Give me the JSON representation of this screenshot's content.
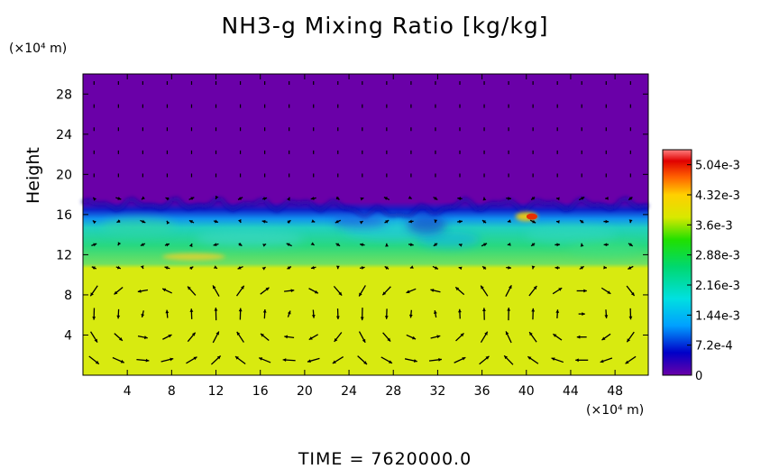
{
  "chart_data": {
    "type": "heatmap",
    "title": "NH3-g Mixing Ratio [kg/kg]",
    "xlabel": "",
    "ylabel": "Height",
    "x_unit": "(×10⁴ m)",
    "y_unit": "(×10⁴ m)",
    "xlim": [
      0,
      51
    ],
    "ylim": [
      0,
      30
    ],
    "x_ticks": [
      4,
      8,
      12,
      16,
      20,
      24,
      28,
      32,
      36,
      40,
      44,
      48
    ],
    "y_ticks": [
      4,
      8,
      12,
      16,
      20,
      24,
      28
    ],
    "colorbar": {
      "min": 0,
      "max": 0.0054,
      "tick_values": [
        0,
        0.00072,
        0.00144,
        0.00216,
        0.00288,
        0.0036,
        0.00432,
        0.00504
      ],
      "tick_labels": [
        "0",
        "7.2e-4",
        "1.44e-3",
        "2.16e-3",
        "2.88e-3",
        "3.6e-3",
        "4.32e-3",
        "5.04e-3"
      ],
      "colors": [
        "#6a00a8",
        "#0000c8",
        "#00a0ff",
        "#00e0e0",
        "#00d870",
        "#20e000",
        "#d8e800",
        "#ffd000",
        "#ff6000",
        "#e00000",
        "#ff8080"
      ]
    },
    "layers": [
      {
        "name": "upper",
        "y_min": 17.5,
        "y_max": 30,
        "value": 0
      },
      {
        "name": "transition",
        "y_min": 16,
        "y_max": 17.5,
        "value": 0.0007
      },
      {
        "name": "middle",
        "y_min": 11,
        "y_max": 16,
        "value": 0.0028
      },
      {
        "name": "lower",
        "y_min": 0,
        "y_max": 11,
        "value": 0.0038
      }
    ],
    "hot_spots": [
      {
        "x": 40.5,
        "y": 15.8,
        "value": 0.005
      }
    ],
    "vector_field": true
  },
  "footer": {
    "time_label": "TIME = 7620000.0"
  }
}
